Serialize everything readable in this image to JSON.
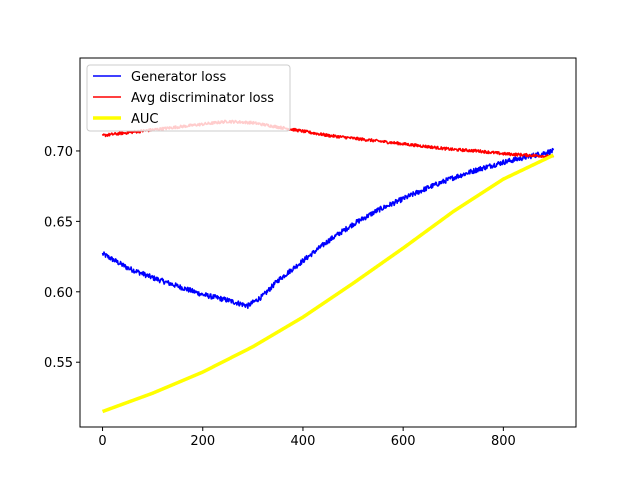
{
  "chart_data": {
    "type": "line",
    "title": "",
    "xlabel": "",
    "ylabel": "",
    "xlim": [
      -45,
      945
    ],
    "ylim": [
      0.504,
      0.766
    ],
    "x_ticks": [
      0,
      200,
      400,
      600,
      800
    ],
    "y_ticks": [
      0.55,
      0.6,
      0.65,
      0.7
    ],
    "x_tick_labels": [
      "0",
      "200",
      "400",
      "600",
      "800"
    ],
    "y_tick_labels": [
      "0.55",
      "0.60",
      "0.65",
      "0.70"
    ],
    "grid": false,
    "legend_position": "upper-left",
    "series": [
      {
        "name": "Generator loss",
        "color": "#0000ff",
        "noise": 0.0018,
        "x": [
          0,
          50,
          100,
          150,
          200,
          250,
          290,
          320,
          350,
          400,
          450,
          500,
          550,
          600,
          650,
          700,
          750,
          800,
          850,
          900
        ],
        "y": [
          0.627,
          0.617,
          0.61,
          0.604,
          0.598,
          0.594,
          0.59,
          0.597,
          0.608,
          0.622,
          0.636,
          0.648,
          0.658,
          0.666,
          0.674,
          0.681,
          0.687,
          0.692,
          0.696,
          0.7
        ]
      },
      {
        "name": "Avg discriminator loss",
        "color": "#ff0000",
        "noise": 0.001,
        "x": [
          0,
          50,
          100,
          150,
          200,
          250,
          300,
          350,
          400,
          450,
          500,
          550,
          600,
          650,
          700,
          750,
          800,
          850,
          900
        ],
        "y": [
          0.711,
          0.713,
          0.715,
          0.717,
          0.719,
          0.721,
          0.72,
          0.717,
          0.714,
          0.711,
          0.709,
          0.707,
          0.705,
          0.703,
          0.701,
          0.7,
          0.698,
          0.697,
          0.696
        ]
      },
      {
        "name": "AUC",
        "color": "#ffff00",
        "noise": 0,
        "x": [
          0,
          100,
          200,
          300,
          400,
          500,
          600,
          700,
          800,
          900
        ],
        "y": [
          0.515,
          0.528,
          0.543,
          0.561,
          0.582,
          0.606,
          0.631,
          0.657,
          0.68,
          0.697
        ]
      }
    ]
  }
}
